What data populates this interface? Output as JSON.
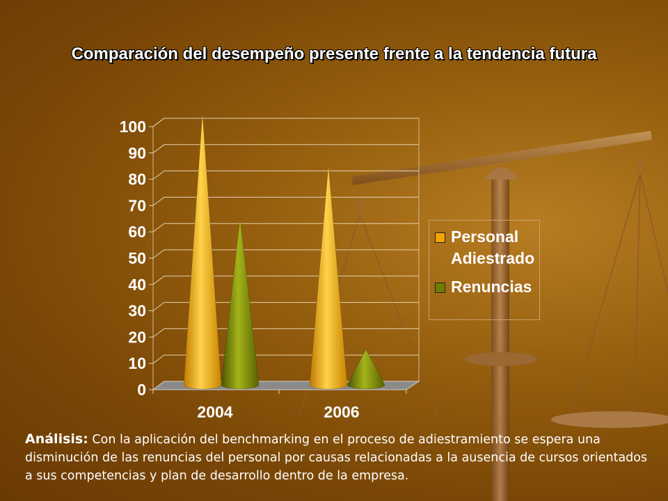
{
  "slide": {
    "title": "Comparación del desempeño presente frente a la tendencia futura"
  },
  "analysis": {
    "label": "Análisis:",
    "text": "Con la aplicación del benchmarking en el proceso de adiestramiento se espera una disminución de las renuncias del personal por causas relacionadas a la ausencia de cursos orientados a sus competencias y plan de desarrollo dentro de la empresa."
  },
  "colors": {
    "personal": "#f5a400",
    "renuncias": "#6f7d00"
  },
  "chart_data": {
    "type": "bar",
    "style": "3d-cone",
    "categories": [
      "2004",
      "2006"
    ],
    "series": [
      {
        "name": "Personal Adiestrado",
        "values": [
          100,
          80
        ]
      },
      {
        "name": "Renuncias",
        "values": [
          60,
          10
        ]
      }
    ],
    "ylim": [
      0,
      100
    ],
    "yticks": [
      0,
      10,
      20,
      30,
      40,
      50,
      60,
      70,
      80,
      90,
      100
    ],
    "grid": true,
    "legend": "right",
    "legend_labels": [
      [
        "Personal",
        "Adiestrado"
      ],
      [
        "Renuncias"
      ]
    ]
  }
}
